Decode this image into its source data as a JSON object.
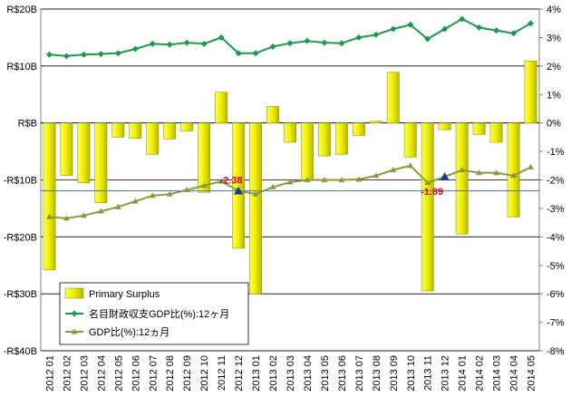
{
  "chart_data": {
    "type": "bar",
    "categories": [
      "2012 01",
      "2012 02",
      "2012 03",
      "2012 04",
      "2012 05",
      "2012 06",
      "2012 07",
      "2012 08",
      "2012 09",
      "2012 10",
      "2012 11",
      "2012 12",
      "2013 01",
      "2013 02",
      "2013 03",
      "2013 04",
      "2013 05",
      "2013 06",
      "2013 07",
      "2013 08",
      "2013 09",
      "2013 10",
      "2013 11",
      "2013 12",
      "2014 01",
      "2014 02",
      "2014 03",
      "2014 04",
      "2014 05"
    ],
    "left_axis": {
      "ylim": [
        -40,
        20
      ],
      "ticks": [
        -40,
        -30,
        -20,
        -10,
        0,
        10,
        20
      ],
      "tick_labels": [
        "-R$40B",
        "-R$30B",
        "-R$20B",
        "-R$10B",
        "R$B",
        "R$10B",
        "R$20B"
      ]
    },
    "right_axis": {
      "ylim": [
        -8,
        4
      ],
      "ticks": [
        -8,
        -7,
        -6,
        -5,
        -4,
        -3,
        -2,
        -1,
        0,
        1,
        2,
        3,
        4
      ],
      "tick_labels": [
        "-8%",
        "-7%",
        "-6%",
        "-5%",
        "-4%",
        "-3%",
        "-2%",
        "-1%",
        "0%",
        "1%",
        "2%",
        "3%",
        "4%"
      ]
    },
    "grid": true,
    "legend_position": "bottom-left",
    "series": [
      {
        "name": "Primary Surplus",
        "kind": "bar",
        "axis": "left",
        "color": "#f2f200",
        "values": [
          -25.8,
          -9.2,
          -10.5,
          -14,
          -2.5,
          -2.7,
          -5.5,
          -2.8,
          -1.4,
          -12.2,
          5.4,
          -22,
          -30,
          2.9,
          -3.4,
          -10,
          -5.8,
          -5.5,
          -2.2,
          0.3,
          8.9,
          -6,
          -29.5,
          -1.2,
          -19.5,
          -2,
          -3.4,
          -16.5,
          10.9
        ]
      },
      {
        "name": "名目財政収支GDP比(%):12ヶ月",
        "kind": "line",
        "axis": "right",
        "marker": "diamond",
        "color": "#1a9a4a",
        "values": [
          2.4,
          2.35,
          2.4,
          2.42,
          2.45,
          2.6,
          2.78,
          2.75,
          2.82,
          2.78,
          3.0,
          2.45,
          2.45,
          2.68,
          2.8,
          2.88,
          2.82,
          2.8,
          3.0,
          3.1,
          3.3,
          3.45,
          2.95,
          3.3,
          3.65,
          3.35,
          3.25,
          3.15,
          3.5
        ]
      },
      {
        "name": "GDP比(%):12ヵ月",
        "kind": "line",
        "axis": "right",
        "marker": "triangle",
        "color": "#8a9a3a",
        "values": [
          -3.3,
          -3.35,
          -3.25,
          -3.1,
          -2.95,
          -2.75,
          -2.55,
          -2.5,
          -2.35,
          -2.2,
          -2.05,
          -2.38,
          -2.5,
          -2.25,
          -2.08,
          -2.0,
          -2.0,
          -2.0,
          -1.98,
          -1.85,
          -1.65,
          -1.5,
          -2.1,
          -1.89,
          -1.65,
          -1.75,
          -1.75,
          -1.85,
          -1.55
        ]
      }
    ],
    "annotations": [
      {
        "text": "-2.38",
        "category": "2012 12",
        "value": -2.38,
        "color": "#e0001a"
      },
      {
        "text": "-1.89",
        "category": "2013 12",
        "value": -1.89,
        "color": "#e0001a"
      }
    ],
    "reference_line": {
      "axis": "right",
      "value": -2.38,
      "color": "#3a7fd0"
    }
  }
}
